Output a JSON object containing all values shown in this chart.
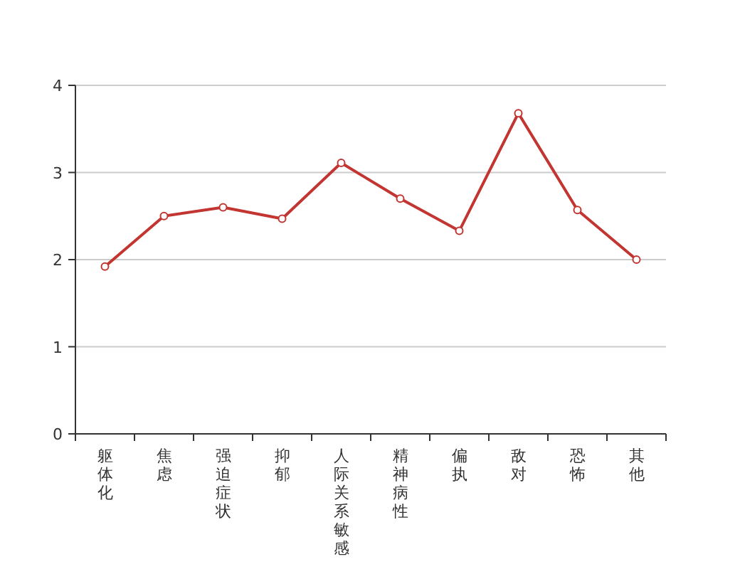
{
  "chart_data": {
    "type": "line",
    "categories": [
      "躯体化",
      "焦虑",
      "强迫症状",
      "抑郁",
      "人际关系敏感",
      "精神病性",
      "偏执",
      "敌对",
      "恐怖",
      "其他"
    ],
    "series": [
      {
        "color": "#c23531",
        "values": [
          1.92,
          2.5,
          2.6,
          2.47,
          3.11,
          2.7,
          2.33,
          3.68,
          2.57,
          2.0
        ]
      }
    ],
    "ylim": [
      0,
      4
    ],
    "yticks": [
      0,
      1,
      2,
      3,
      4
    ],
    "grid": "y",
    "marker": "circle",
    "line_style": "solid"
  }
}
